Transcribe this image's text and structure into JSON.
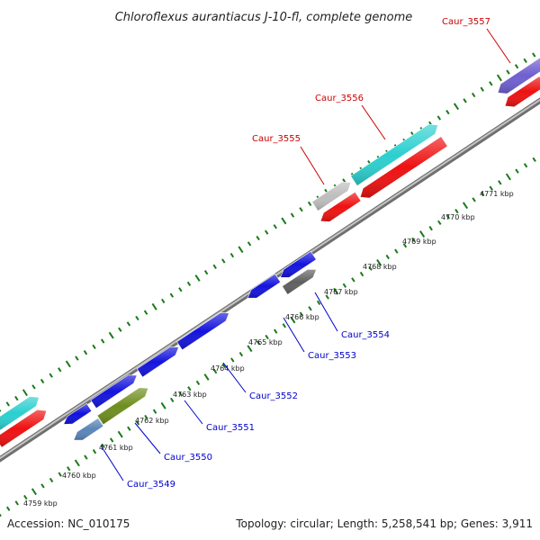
{
  "title": "Chloroflexus aurantiacus J-10-fl, complete genome",
  "footer": {
    "accession": "Accession: NC_010175",
    "summary": "Topology: circular; Length: 5,258,541 bp; Genes: 3,911"
  },
  "colors": {
    "backbone": "#8a8a8a",
    "tick": "#1a7a1a",
    "label_blue": "#0000cc",
    "label_red": "#cc0000",
    "leader": "#222222"
  },
  "scale_labels": [
    "4759 kbp",
    "4760 kbp",
    "4761 kbp",
    "4762 kbp",
    "4763 kbp",
    "4764 kbp",
    "4765 kbp",
    "4766 kbp",
    "4767 kbp",
    "4768 kbp",
    "4769 kbp",
    "4770 kbp",
    "4771 kbp"
  ],
  "gene_labels": [
    "Caur_3549",
    "Caur_3550",
    "Caur_3551",
    "Caur_3552",
    "Caur_3553",
    "Caur_3554",
    "Caur_3555",
    "Caur_3556",
    "Caur_3557"
  ]
}
